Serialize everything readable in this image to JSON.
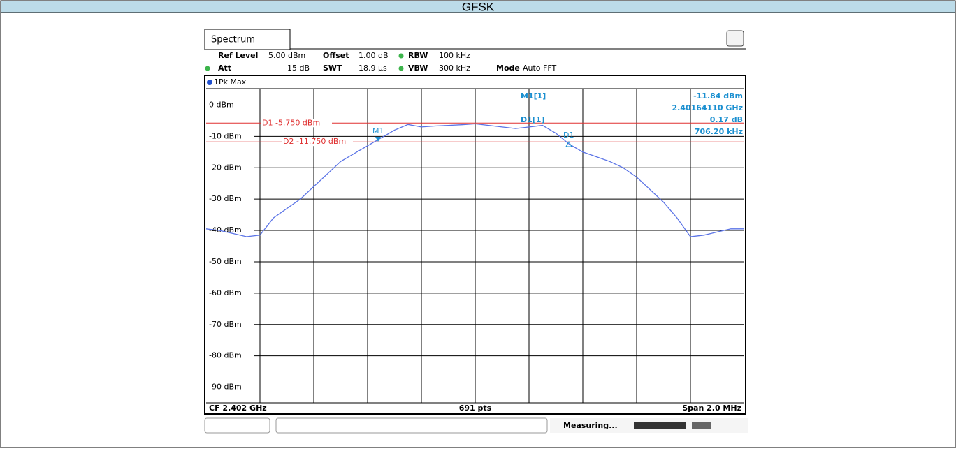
{
  "header": {
    "title": "GFSK"
  },
  "tab": "Spectrum",
  "settings": {
    "row1": [
      "Ref Level",
      "5.00 dBm",
      "Offset",
      "1.00 dB",
      "RBW",
      "100 kHz"
    ],
    "row2": [
      "Att",
      "15 dB",
      "SWT",
      "18.9 µs",
      "VBW",
      "300 kHz",
      "Mode",
      "Auto FFT"
    ]
  },
  "trace_label": "1Pk Max",
  "readout": {
    "m1": "M1[1]",
    "m1_level": "-11.84 dBm",
    "m1_freq": "2.40164110 GHz",
    "d1": "D1[1]",
    "d1_level": "0.17 dB",
    "d1_freq": "706.20 kHz"
  },
  "marker_labels": [
    "M1",
    "D1"
  ],
  "chart_data": {
    "type": "line",
    "values": [
      -39.5,
      -40,
      -41,
      -42,
      -41.5,
      -36,
      -33,
      -30,
      -26,
      -22,
      -18,
      -15.5,
      -13,
      -10.5,
      -8,
      -6.2,
      -7,
      -6.7,
      -6.5,
      -6.3,
      -6,
      -6.5,
      -7,
      -7.5,
      -7,
      -6.5,
      -9,
      -12.5,
      -15,
      -16.5,
      -18,
      -20,
      -23,
      -27,
      -31,
      -36,
      -42,
      -41.5,
      -40.5,
      -39.5,
      -39.5
    ],
    "color": "#5a73e6",
    "ylim": [
      -95,
      5
    ],
    "yticks": [
      {
        "value": 0,
        "label": "0 dBm"
      },
      {
        "value": -10,
        "label": "-10 dBm"
      },
      {
        "value": -20,
        "label": "-20 dBm"
      },
      {
        "value": -30,
        "label": "-30 dBm"
      },
      {
        "value": -40,
        "label": "-40 dBm"
      },
      {
        "value": -50,
        "label": "-50 dBm"
      },
      {
        "value": -60,
        "label": "-60 dBm"
      },
      {
        "value": -70,
        "label": "-70 dBm"
      },
      {
        "value": -80,
        "label": "-80 dBm"
      },
      {
        "value": -90,
        "label": "-90 dBm"
      }
    ],
    "display_lines": [
      {
        "label": "D1 -5.750 dBm",
        "value": -5.75
      },
      {
        "label": "D2 -11.750 dBm",
        "value": -11.75
      }
    ],
    "grid": true
  },
  "footer": {
    "left": "CF 2.402 GHz",
    "center": "691 pts",
    "right": "Span 2.0 MHz"
  },
  "status": "Measuring..."
}
